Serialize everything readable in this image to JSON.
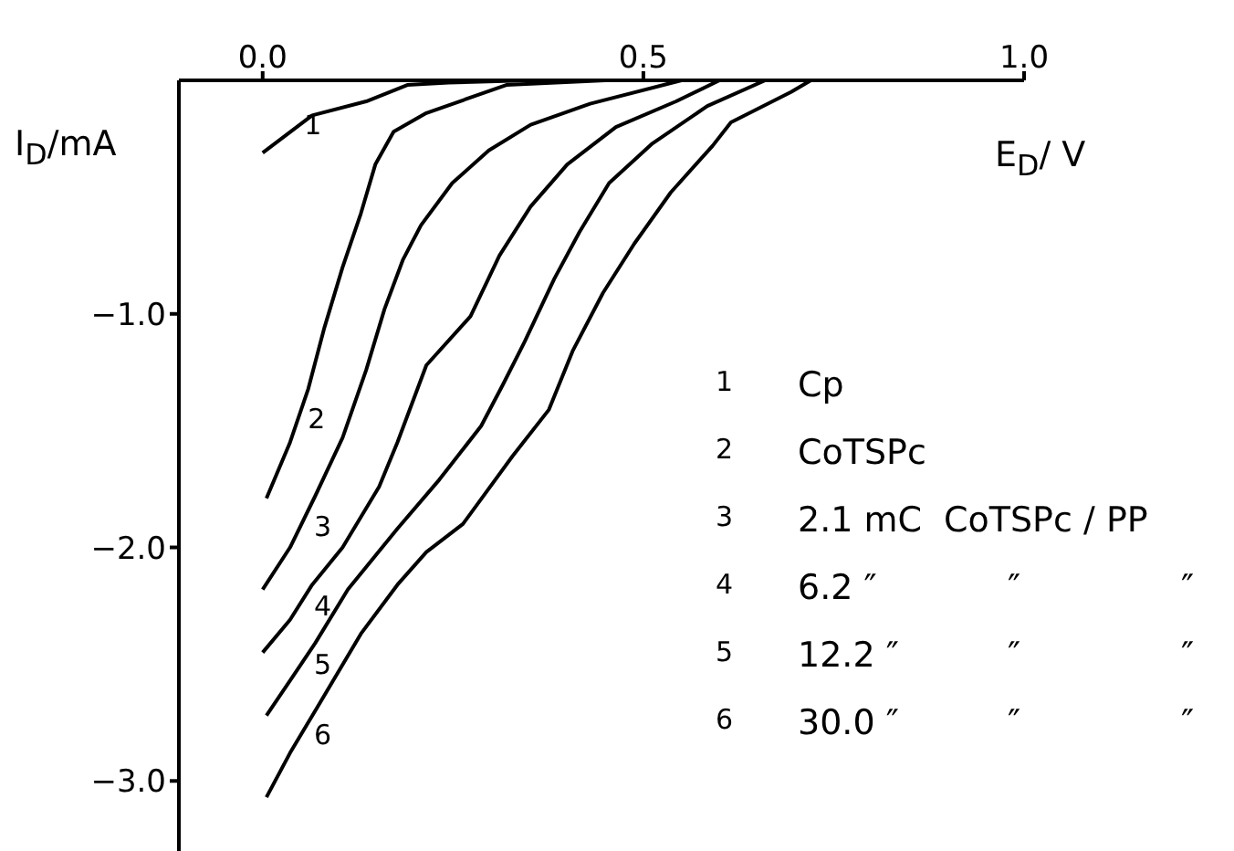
{
  "chart_data": {
    "type": "line",
    "xlabel": "E$_{D}$/ V",
    "ylabel": "I$_{D}$/mA",
    "xlim": [
      -0.11,
      1.0
    ],
    "ylim": [
      -3.3,
      0
    ],
    "xticks": [
      {
        "value": 0,
        "label": "0.0"
      },
      {
        "value": 0.5,
        "label": "0.5"
      },
      {
        "value": 1.0,
        "label": "1.0"
      }
    ],
    "yticks": [
      {
        "value": -1,
        "label": "−1.0"
      },
      {
        "value": -2,
        "label": "−2.0"
      },
      {
        "value": -3,
        "label": "−3.0"
      }
    ],
    "grid": false,
    "legend": false,
    "marker": "none",
    "line_style": "solid",
    "series": [
      {
        "color": "#000000",
        "x": [
          0.0,
          0.065,
          0.136,
          0.19,
          0.244,
          0.35
        ],
        "values": [
          -0.31,
          -0.15,
          -0.09,
          -0.02,
          -0.01,
          0
        ]
      },
      {
        "color": "#000000",
        "x": [
          0.005,
          0.036,
          0.06,
          0.081,
          0.105,
          0.129,
          0.148,
          0.172,
          0.215,
          0.32,
          0.45
        ],
        "values": [
          -1.79,
          -1.55,
          -1.32,
          -1.06,
          -0.8,
          -0.57,
          -0.36,
          -0.22,
          -0.14,
          -0.02,
          0
        ]
      },
      {
        "color": "#000000",
        "x": [
          0.0,
          0.036,
          0.069,
          0.105,
          0.136,
          0.16,
          0.184,
          0.208,
          0.249,
          0.297,
          0.352,
          0.43,
          0.55
        ],
        "values": [
          -2.18,
          -2.0,
          -1.78,
          -1.53,
          -1.24,
          -0.98,
          -0.77,
          -0.62,
          -0.44,
          -0.3,
          -0.19,
          -0.1,
          0
        ]
      },
      {
        "color": "#000000",
        "x": [
          0.0,
          0.036,
          0.065,
          0.105,
          0.153,
          0.177,
          0.215,
          0.273,
          0.311,
          0.352,
          0.4,
          0.464,
          0.543,
          0.6
        ],
        "values": [
          -2.45,
          -2.31,
          -2.16,
          -2.0,
          -1.74,
          -1.55,
          -1.22,
          -1.01,
          -0.75,
          -0.54,
          -0.36,
          -0.2,
          -0.09,
          0
        ]
      },
      {
        "color": "#000000",
        "x": [
          0.005,
          0.036,
          0.069,
          0.112,
          0.177,
          0.232,
          0.287,
          0.316,
          0.344,
          0.383,
          0.416,
          0.455,
          0.512,
          0.584,
          0.66
        ],
        "values": [
          -2.72,
          -2.57,
          -2.41,
          -2.18,
          -1.92,
          -1.71,
          -1.48,
          -1.3,
          -1.12,
          -0.85,
          -0.65,
          -0.44,
          -0.27,
          -0.11,
          0
        ]
      },
      {
        "color": "#000000",
        "x": [
          0.005,
          0.036,
          0.069,
          0.129,
          0.177,
          0.215,
          0.263,
          0.328,
          0.376,
          0.407,
          0.447,
          0.488,
          0.536,
          0.591,
          0.615,
          0.694,
          0.72
        ],
        "values": [
          -3.07,
          -2.88,
          -2.7,
          -2.37,
          -2.16,
          -2.02,
          -1.9,
          -1.61,
          -1.41,
          -1.16,
          -0.91,
          -0.7,
          -0.48,
          -0.28,
          -0.18,
          -0.05,
          0
        ]
      }
    ],
    "annotations": [
      {
        "text": "1",
        "x": 0.04,
        "y": -0.19
      },
      {
        "text": "2",
        "x": 0.045,
        "y": -1.45
      },
      {
        "text": "3",
        "x": 0.053,
        "y": -1.91
      },
      {
        "text": "4",
        "x": 0.053,
        "y": -2.25
      },
      {
        "text": "5",
        "x": 0.053,
        "y": -2.5
      },
      {
        "text": "6",
        "x": 0.053,
        "y": -2.8
      },
      "1\tCp",
      "2\tCoTSPc",
      "3\t2.1 mC\tCoTSPc / PP",
      "4\t6.2 ″\t″\t″",
      "5\t12.2 ″\t″\t″",
      "6\t30.0 ″\t″\t″"
    ]
  }
}
